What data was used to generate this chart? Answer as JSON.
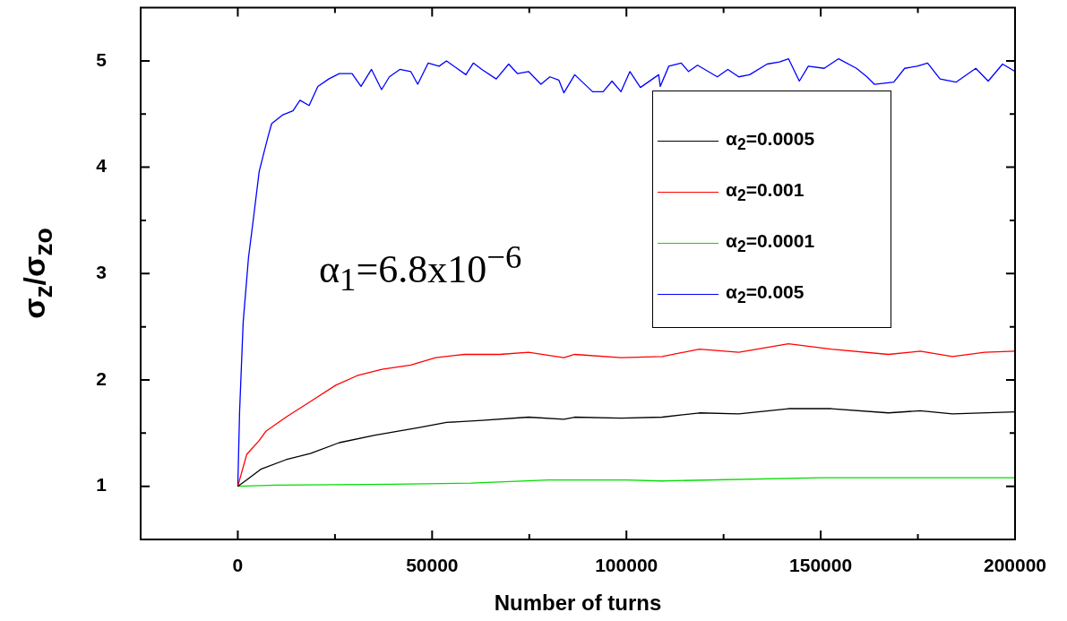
{
  "chart_data": {
    "type": "line",
    "xlabel": "Number of turns",
    "ylabel": "σ$_{z}$/σ$_{zo}$",
    "annotations": [
      "α$_{1}$=6.8x10$^{−6}$"
    ],
    "xlim": [
      -25000,
      200000
    ],
    "xticks": [
      0,
      {
        "value": 25000,
        "label": null
      },
      50000,
      {
        "value": 75000,
        "label": null
      },
      100000,
      {
        "value": 125000,
        "label": null
      },
      150000,
      {
        "value": 175000,
        "label": null
      },
      200000
    ],
    "ylim": [
      0.5,
      5.5
    ],
    "yticks": [
      1,
      {
        "value": 1.5,
        "label": null
      },
      2,
      {
        "value": 2.5,
        "label": null
      },
      3,
      {
        "value": 3.5,
        "label": null
      },
      4,
      {
        "value": 4.5,
        "label": null
      },
      5
    ],
    "legend": "top right",
    "marker": "none",
    "line_style": "solid",
    "series": [
      {
        "name": "α$_{2}$=0.0005",
        "color": "#000000",
        "x": [
          0,
          2300,
          5900,
          12400,
          18800,
          26100,
          35300,
          46300,
          53700,
          62800,
          74800,
          83900,
          86700,
          98600,
          109200,
          118800,
          128900,
          141700,
          152700,
          167400,
          175600,
          183900,
          200000
        ],
        "values": [
          1,
          1.06,
          1.16,
          1.25,
          1.31,
          1.41,
          1.48,
          1.55,
          1.6,
          1.62,
          1.65,
          1.63,
          1.65,
          1.64,
          1.65,
          1.69,
          1.68,
          1.73,
          1.73,
          1.69,
          1.71,
          1.68,
          1.7
        ]
      },
      {
        "name": "α$_{2}$=0.001",
        "color": "#ff0000",
        "x": [
          0,
          2300,
          5500,
          7300,
          12400,
          18800,
          25200,
          30700,
          37100,
          44500,
          50900,
          58300,
          67400,
          74800,
          83900,
          86700,
          98600,
          109200,
          118800,
          128900,
          141700,
          152700,
          167400,
          175600,
          183900,
          192200,
          200000
        ],
        "values": [
          1,
          1.3,
          1.43,
          1.52,
          1.65,
          1.8,
          1.95,
          2.04,
          2.1,
          2.14,
          2.21,
          2.24,
          2.24,
          2.26,
          2.21,
          2.24,
          2.21,
          2.22,
          2.29,
          2.26,
          2.34,
          2.29,
          2.24,
          2.27,
          2.22,
          2.26,
          2.27
        ]
      },
      {
        "name": "α$_{2}$=0.0001",
        "color": "#00dd00",
        "x": [
          0,
          10000,
          40000,
          60000,
          80000,
          100000,
          109000,
          150000,
          165000,
          200000
        ],
        "values": [
          1,
          1.01,
          1.02,
          1.03,
          1.06,
          1.06,
          1.05,
          1.08,
          1.08,
          1.08
        ]
      },
      {
        "name": "α$_{2}$=0.005",
        "color": "#0000ff",
        "x": [
          0,
          460,
          1376,
          2750,
          4130,
          5500,
          6880,
          7800,
          8700,
          11470,
          14200,
          16000,
          18350,
          20600,
          23400,
          26100,
          29400,
          31700,
          34400,
          37000,
          39000,
          41700,
          44500,
          46300,
          49000,
          51800,
          53700,
          56400,
          58700,
          60600,
          62800,
          66500,
          69700,
          72000,
          74800,
          78000,
          80300,
          82600,
          83900,
          86700,
          91300,
          94000,
          96300,
          98600,
          100900,
          103600,
          108300,
          108700,
          110900,
          114100,
          116000,
          118300,
          123400,
          126100,
          128900,
          131700,
          136200,
          139400,
          141700,
          144500,
          146800,
          150900,
          154600,
          159200,
          161900,
          163800,
          168800,
          171600,
          174800,
          177500,
          180700,
          184800,
          189900,
          193100,
          196800,
          200000
        ],
        "values": [
          1,
          1.7,
          2.54,
          3.15,
          3.55,
          3.96,
          4.16,
          4.29,
          4.41,
          4.49,
          4.53,
          4.63,
          4.58,
          4.76,
          4.83,
          4.88,
          4.88,
          4.76,
          4.92,
          4.73,
          4.85,
          4.92,
          4.9,
          4.78,
          4.98,
          4.95,
          5.0,
          4.93,
          4.87,
          4.98,
          4.92,
          4.83,
          4.97,
          4.88,
          4.9,
          4.78,
          4.85,
          4.82,
          4.7,
          4.87,
          4.71,
          4.71,
          4.81,
          4.71,
          4.9,
          4.75,
          4.87,
          4.76,
          4.95,
          4.98,
          4.9,
          4.96,
          4.85,
          4.92,
          4.85,
          4.87,
          4.97,
          4.99,
          5.02,
          4.81,
          4.95,
          4.93,
          5.02,
          4.93,
          4.85,
          4.78,
          4.8,
          4.93,
          4.95,
          4.98,
          4.83,
          4.8,
          4.93,
          4.81,
          4.97,
          4.9
        ]
      }
    ]
  }
}
